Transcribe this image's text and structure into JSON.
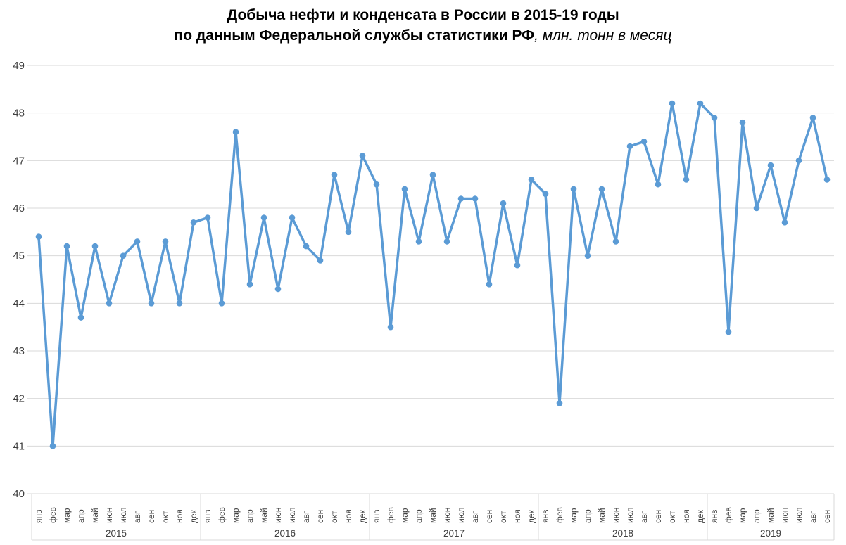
{
  "title": {
    "line1": "Добыча нефти и конденсата в России в 2015-19 годы",
    "line2_bold": "по данным Федеральной службы статистики РФ",
    "line2_italic": ", млн. тонн в месяц"
  },
  "colors": {
    "line": "#5B9BD5",
    "marker": "#5B9BD5",
    "grid": "#D9D9D9",
    "axis_text": "#404040",
    "title_text": "#000000"
  },
  "chart_data": {
    "type": "line",
    "title": "Добыча нефти и конденсата в России в 2015-19 годы по данным Федеральной службы статистики РФ, млн. тонн в месяц",
    "ylabel": "млн. тонн в месяц",
    "ylim": [
      40,
      49
    ],
    "y_ticks": [
      40,
      41,
      42,
      43,
      44,
      45,
      46,
      47,
      48,
      49
    ],
    "grid": true,
    "legend": false,
    "month_labels": [
      "янв",
      "фев",
      "мар",
      "апр",
      "май",
      "июн",
      "июл",
      "авг",
      "сен",
      "окт",
      "ноя",
      "дек"
    ],
    "series": [
      {
        "year": "2015",
        "values": [
          45.4,
          41.0,
          45.2,
          43.7,
          45.2,
          44.0,
          45.0,
          45.3,
          44.0,
          45.3,
          44.0,
          45.7
        ]
      },
      {
        "year": "2016",
        "values": [
          45.8,
          44.0,
          47.6,
          44.4,
          45.8,
          44.3,
          45.8,
          45.2,
          44.9,
          46.7,
          45.5,
          47.1
        ]
      },
      {
        "year": "2017",
        "values": [
          46.5,
          43.5,
          46.4,
          45.3,
          46.7,
          45.3,
          46.2,
          46.2,
          44.4,
          46.1,
          44.8,
          46.6
        ]
      },
      {
        "year": "2018",
        "values": [
          46.3,
          41.9,
          46.4,
          45.0,
          46.4,
          45.3,
          47.3,
          47.4,
          46.5,
          48.2,
          46.6,
          48.2
        ]
      },
      {
        "year": "2019",
        "values": [
          47.9,
          43.4,
          47.8,
          46.0,
          46.9,
          45.7,
          47.0,
          47.9,
          46.6
        ]
      }
    ]
  }
}
